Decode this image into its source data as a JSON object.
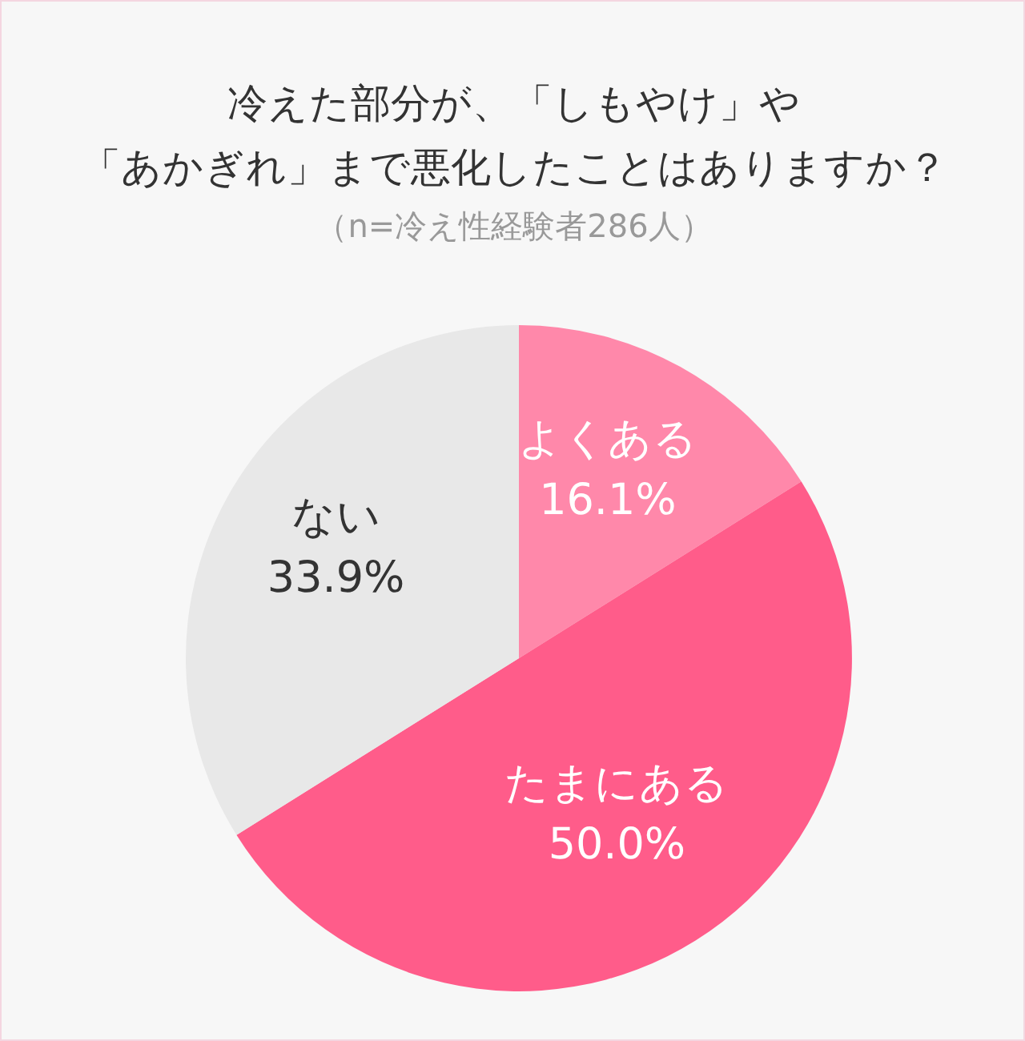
{
  "chart_data": {
    "type": "pie",
    "title": "冷えた部分が、「しもやけ」や「あかぎれ」まで悪化したことはありますか？",
    "subtitle": "（n=冷え性経験者286人）",
    "categories": [
      "よくある",
      "たまにある",
      "ない"
    ],
    "values": [
      16.1,
      50.0,
      33.9
    ],
    "value_labels": [
      "16.1%",
      "50.0%",
      "33.9%"
    ],
    "colors": [
      "#ff88aa",
      "#ff5c8a",
      "#e8e8e8"
    ]
  }
}
